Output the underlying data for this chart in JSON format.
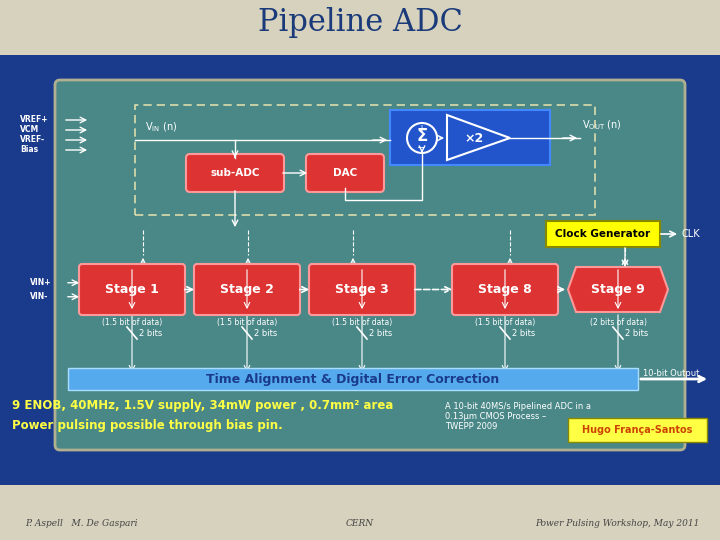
{
  "title": "Pipeline ADC",
  "title_color": "#1a3a7a",
  "title_fontsize": 22,
  "bg_top_color": "#d6d2be",
  "bg_bottom_color": "#1a3a8c",
  "main_box_color": "#4a8888",
  "main_box_border": "#c8c4b0",
  "stage_color": "#dd3333",
  "stage_border": "#ff8888",
  "stage_text_color": "#ffffff",
  "blue_block_color": "#2255cc",
  "clock_gen_color": "#ffff00",
  "clock_gen_text": "#000000",
  "time_align_color": "#55aaee",
  "time_align_text": "#1a3a8c",
  "hugo_box_color": "#ffff44",
  "hugo_text_color": "#cc4400",
  "yellow_text_color": "#ffff44",
  "footer_text": "#444444",
  "stages": [
    "Stage 1",
    "Stage 2",
    "Stage 3",
    "Stage 8",
    "Stage 9"
  ],
  "stage_bits": [
    "(1.5 bit of data)",
    "(1.5 bit of data)",
    "(1.5 bit of data)",
    "(1.5 bit of data)",
    "(2 bits of data)"
  ],
  "stage_out": [
    "2 bits",
    "2 bits",
    "2 bits",
    "2 bits",
    "2 bits"
  ],
  "subadc_label": "sub-ADC",
  "dac_label": "DAC",
  "clock_label": "Clock Generator",
  "clk_label": "CLK",
  "time_align_label": "Time Alignment & Digital Error Correction",
  "tenbit_label": "10-bit Output",
  "line1": "9 ENOB, 40MHz, 1.5V supply, 34mW power , 0.7mm² area",
  "line2": "Power pulsing possible through bias pin.",
  "right_text_1": "A 10-bit 40MS/s Pipelined ADC in a",
  "right_text_2": "0.13μm CMOS Process –",
  "right_text_3": "TWEPP 2009",
  "hugo_text": "Hugo França-Santos",
  "footer_left": "P. Aspell   M. De Gaspari",
  "footer_center": "CERN",
  "footer_right": "Power Pulsing Workshop, May 2011",
  "vref_labels": [
    "VREF+",
    "VCM",
    "VREF-",
    "Bias"
  ],
  "vin_bottom_labels": [
    "VIN+",
    "VIN-"
  ]
}
